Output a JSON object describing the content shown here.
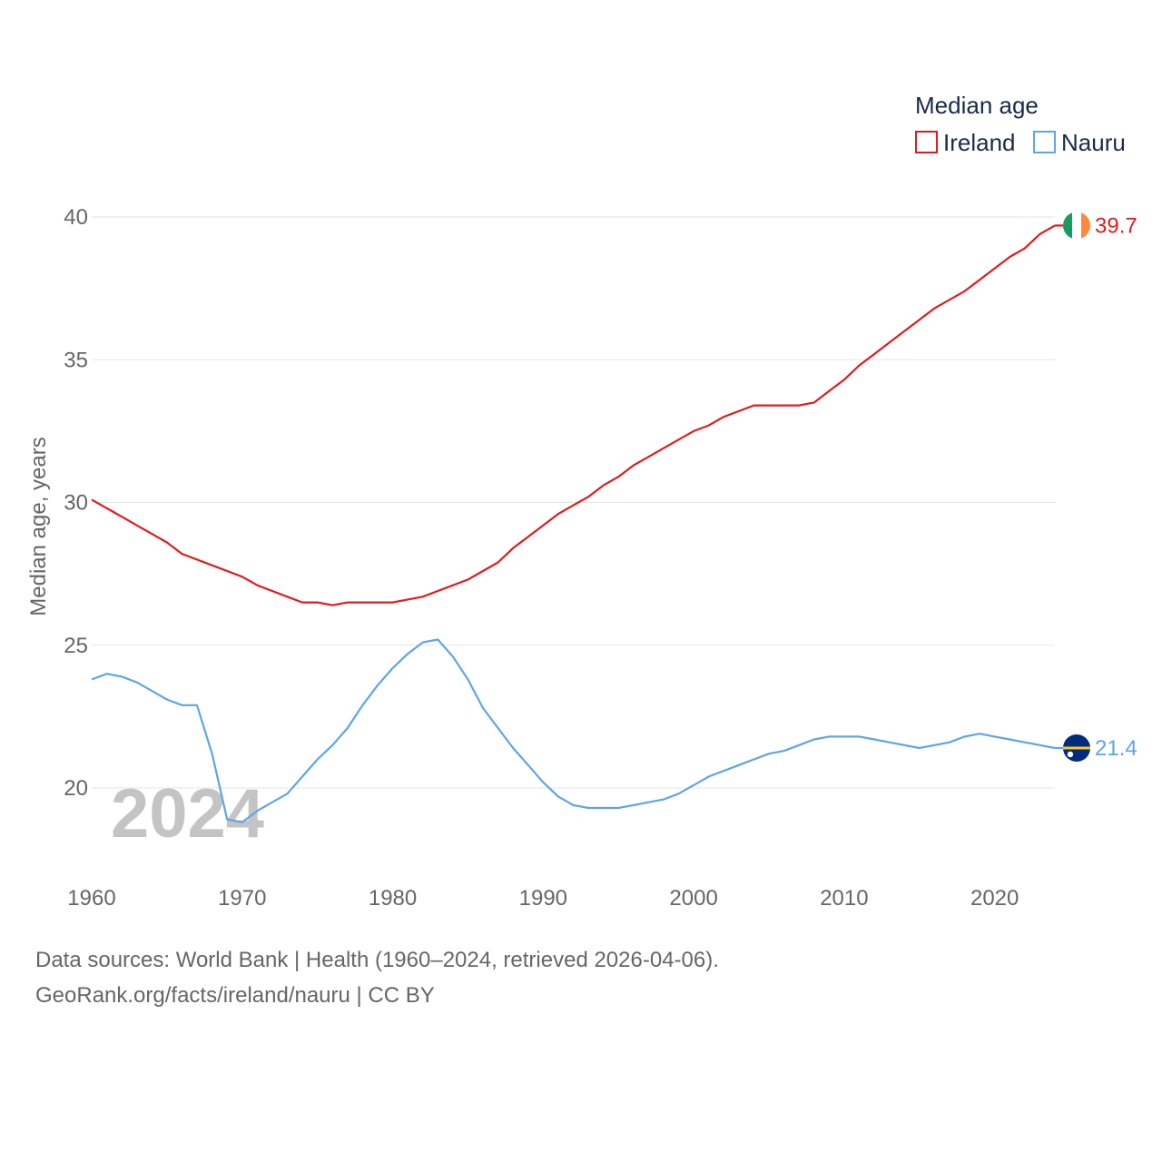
{
  "chart_data": {
    "type": "line",
    "title": "Median age",
    "xlabel": "",
    "ylabel": "Median age, years",
    "xlim": [
      1960,
      2024
    ],
    "ylim": [
      17.5,
      40
    ],
    "x_ticks": [
      1960,
      1970,
      1980,
      1990,
      2000,
      2010,
      2020
    ],
    "y_ticks": [
      20,
      25,
      30,
      35,
      40
    ],
    "year_watermark": "2024",
    "x": [
      1960,
      1961,
      1962,
      1963,
      1964,
      1965,
      1966,
      1967,
      1968,
      1969,
      1970,
      1971,
      1972,
      1973,
      1974,
      1975,
      1976,
      1977,
      1978,
      1979,
      1980,
      1981,
      1982,
      1983,
      1984,
      1985,
      1986,
      1987,
      1988,
      1989,
      1990,
      1991,
      1992,
      1993,
      1994,
      1995,
      1996,
      1997,
      1998,
      1999,
      2000,
      2001,
      2002,
      2003,
      2004,
      2005,
      2006,
      2007,
      2008,
      2009,
      2010,
      2011,
      2012,
      2013,
      2014,
      2015,
      2016,
      2017,
      2018,
      2019,
      2020,
      2021,
      2022,
      2023,
      2024
    ],
    "series": [
      {
        "name": "Ireland",
        "color": "#e31a1c",
        "end_label": "39.7",
        "flag": "ireland",
        "values": [
          30.1,
          29.8,
          29.5,
          29.2,
          28.9,
          28.6,
          28.2,
          28.0,
          27.8,
          27.6,
          27.4,
          27.1,
          26.9,
          26.7,
          26.5,
          26.5,
          26.4,
          26.5,
          26.5,
          26.5,
          26.5,
          26.6,
          26.7,
          26.9,
          27.1,
          27.3,
          27.6,
          27.9,
          28.4,
          28.8,
          29.2,
          29.6,
          29.9,
          30.2,
          30.6,
          30.9,
          31.3,
          31.6,
          31.9,
          32.2,
          32.5,
          32.7,
          33.0,
          33.2,
          33.4,
          33.4,
          33.4,
          33.4,
          33.5,
          33.9,
          34.3,
          34.8,
          35.2,
          35.6,
          36.0,
          36.4,
          36.8,
          37.1,
          37.4,
          37.8,
          38.2,
          38.6,
          38.9,
          39.4,
          39.7
        ]
      },
      {
        "name": "Nauru",
        "color": "#5da5e8",
        "end_label": "21.4",
        "flag": "nauru",
        "values": [
          23.8,
          24.0,
          23.9,
          23.7,
          23.4,
          23.1,
          22.9,
          22.9,
          21.2,
          18.9,
          18.8,
          19.2,
          19.5,
          19.8,
          20.4,
          21.0,
          21.5,
          22.1,
          22.9,
          23.6,
          24.2,
          24.7,
          25.1,
          25.2,
          24.6,
          23.8,
          22.8,
          22.1,
          21.4,
          20.8,
          20.2,
          19.7,
          19.4,
          19.3,
          19.3,
          19.3,
          19.4,
          19.5,
          19.6,
          19.8,
          20.1,
          20.4,
          20.6,
          20.8,
          21.0,
          21.2,
          21.3,
          21.5,
          21.7,
          21.8,
          21.8,
          21.8,
          21.7,
          21.6,
          21.5,
          21.4,
          21.5,
          21.6,
          21.8,
          21.9,
          21.8,
          21.7,
          21.6,
          21.5,
          21.4
        ]
      }
    ],
    "legend": {
      "title": "Median age",
      "position": "top-right",
      "items": [
        "Ireland",
        "Nauru"
      ]
    }
  },
  "footer": {
    "line1": "Data sources: World Bank | Health (1960–2024, retrieved 2026-04-06).",
    "line2": "GeoRank.org/facts/ireland/nauru | CC BY"
  }
}
